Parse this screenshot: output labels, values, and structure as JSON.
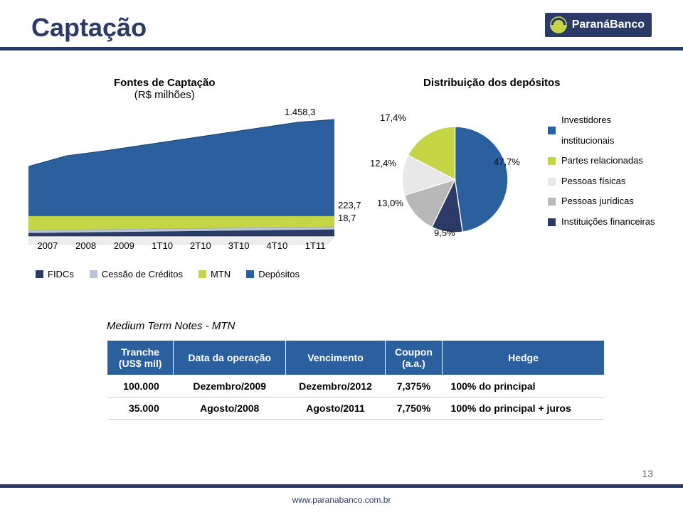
{
  "page": {
    "title": "Captação",
    "page_number": "13",
    "footer_url": "www.paranabanco.com.br",
    "logo_text": "ParanáBanco"
  },
  "left_chart": {
    "caption_line1": "Fontes de Captação",
    "caption_line2": "(R$ milhões)",
    "top_value": "1.458,3",
    "mtn_value": "223,7",
    "cessao_value": "18,7",
    "categories": [
      "2007",
      "2008",
      "2009",
      "1T10",
      "2T10",
      "3T10",
      "4T10",
      "1T11"
    ],
    "series": [
      {
        "name": "FIDCs",
        "color": "#2b3a67"
      },
      {
        "name": "Cessão de Créditos",
        "color": "#b8c5d6"
      },
      {
        "name": "MTN",
        "color": "#c4d645"
      },
      {
        "name": "Depósitos",
        "color": "#2b5f9e"
      }
    ],
    "axis_color": "#999999"
  },
  "right_chart": {
    "caption": "Distribuição dos depósitos",
    "slices": [
      {
        "label": "Investidores institucionais",
        "value": 47.7,
        "display": "47,7%",
        "color": "#2b5f9e"
      },
      {
        "label": "Partes relacionadas",
        "value": 17.4,
        "display": "17,4%",
        "color": "#c4d645"
      },
      {
        "label": "Pessoas físicas",
        "value": 12.4,
        "display": "12,4%",
        "color": "#e8e8e8"
      },
      {
        "label": "Pessoas jurídicas",
        "value": 13.0,
        "display": "13,0%",
        "color": "#b8b8b8"
      },
      {
        "label": "Instituições financeiras",
        "value": 9.5,
        "display": "9,5%",
        "color": "#2b3a67"
      }
    ]
  },
  "mtn_table": {
    "title": "Medium Term Notes - MTN",
    "columns": [
      "Tranche\n(US$ mil)",
      "Data da operação",
      "Vencimento",
      "Coupon\n(a.a.)",
      "Hedge"
    ],
    "rows": [
      [
        "100.000",
        "Dezembro/2009",
        "Dezembro/2012",
        "7,375%",
        "100% do principal"
      ],
      [
        "35.000",
        "Agosto/2008",
        "Agosto/2011",
        "7,750%",
        "100% do principal + juros"
      ]
    ],
    "header_bg": "#2b5f9e",
    "header_color": "#ffffff"
  }
}
